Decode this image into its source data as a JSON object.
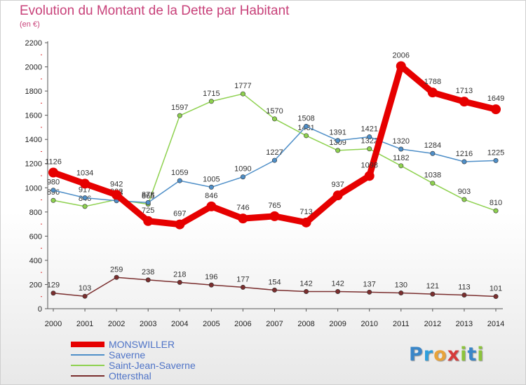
{
  "title": "Evolution du Montant de la Dette par Habitant",
  "subtitle": "(en €)",
  "logo": {
    "text": "Proxiti",
    "letter_colors": [
      "#3a86c8",
      "#2e9fdc",
      "#e8a33b",
      "#d63b3b",
      "#8cc43b",
      "#3a86c8",
      "#8cc43b"
    ]
  },
  "chart_data": {
    "type": "line",
    "title": "Evolution du Montant de la Dette par Habitant",
    "subtitle": "(en €)",
    "x": [
      "2000",
      "2001",
      "2002",
      "2003",
      "2004",
      "2005",
      "2006",
      "2007",
      "2008",
      "2009",
      "2010",
      "2011",
      "2012",
      "2013",
      "2014"
    ],
    "ylim": [
      0,
      2200
    ],
    "yticks": [
      0,
      200,
      400,
      600,
      800,
      1000,
      1200,
      1400,
      1600,
      1800,
      2000,
      2200
    ],
    "grid": false,
    "legend_position": "bottom-left",
    "series": [
      {
        "name": "MONSWILLER",
        "color": "#e60000",
        "values": [
          1126,
          1034,
          942,
          725,
          697,
          846,
          746,
          765,
          713,
          937,
          1098,
          2006,
          1788,
          1713,
          1649
        ]
      },
      {
        "name": "Saverne",
        "color": "#4f8fc8",
        "values": [
          980,
          917,
          893,
          878,
          1059,
          1005,
          1090,
          1227,
          1508,
          1391,
          1421,
          1320,
          1284,
          1216,
          1225
        ]
      },
      {
        "name": "Saint-Jean-Saverne",
        "color": "#8ed14f",
        "values": [
          896,
          846,
          902,
          865,
          1597,
          1715,
          1777,
          1570,
          1431,
          1309,
          1322,
          1182,
          1038,
          903,
          810
        ]
      },
      {
        "name": "Ottersthal",
        "color": "#7a2e2e",
        "values": [
          129,
          103,
          259,
          238,
          218,
          196,
          177,
          154,
          142,
          142,
          137,
          130,
          121,
          113,
          101
        ]
      }
    ]
  }
}
